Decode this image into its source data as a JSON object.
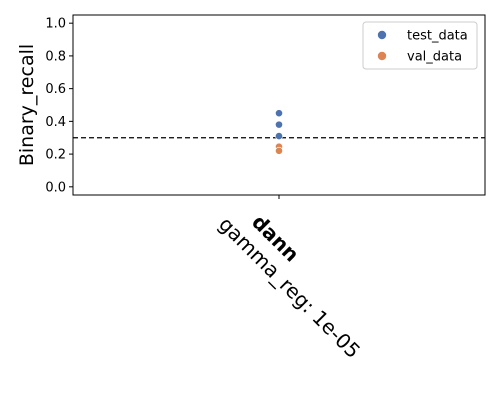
{
  "chart_data": {
    "type": "scatter",
    "title": "",
    "xlabel": "",
    "ylabel": "Binary_recall",
    "ylim": [
      -0.05,
      1.05
    ],
    "yticks": [
      0.0,
      0.2,
      0.4,
      0.6,
      0.8,
      1.0
    ],
    "ytick_labels": [
      "0.0",
      "0.2",
      "0.4",
      "0.6",
      "0.8",
      "1.0"
    ],
    "categories": [
      {
        "name": "dann",
        "sub": "gamma_reg: 1e-05"
      }
    ],
    "reference_line": {
      "y": 0.3,
      "style": "dashed",
      "color": "#000000"
    },
    "grid": false,
    "legend_position": "top-right",
    "series": [
      {
        "name": "test_data",
        "color": "#4c72b0",
        "category": "dann",
        "values": [
          0.45,
          0.38,
          0.31
        ]
      },
      {
        "name": "val_data",
        "color": "#dd8452",
        "category": "dann",
        "values": [
          0.245,
          0.22
        ]
      }
    ]
  }
}
